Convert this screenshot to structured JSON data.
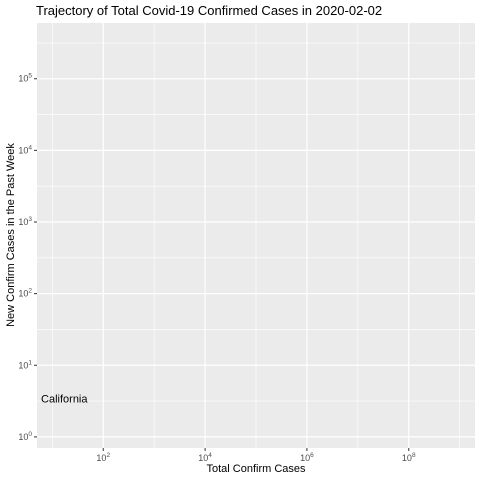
{
  "chart_data": {
    "type": "scatter",
    "title": "Trajectory of Total Covid-19 Confirmed Cases in 2020-02-02",
    "xlabel": "Total Confirm Cases",
    "ylabel": "New Confirm Cases in the Past Week",
    "x_scale": "log10",
    "y_scale": "log10",
    "xlim": [
      5,
      2000000000
    ],
    "ylim": [
      0.7,
      600000
    ],
    "x_ticks": [
      100,
      10000,
      1000000,
      100000000
    ],
    "y_ticks": [
      1,
      10,
      100,
      1000,
      10000,
      100000
    ],
    "grid": true,
    "background": "#EBEBEB",
    "grid_color": "#FFFFFF",
    "points": [
      {
        "label": "California",
        "x": 6,
        "y": 3
      }
    ]
  }
}
